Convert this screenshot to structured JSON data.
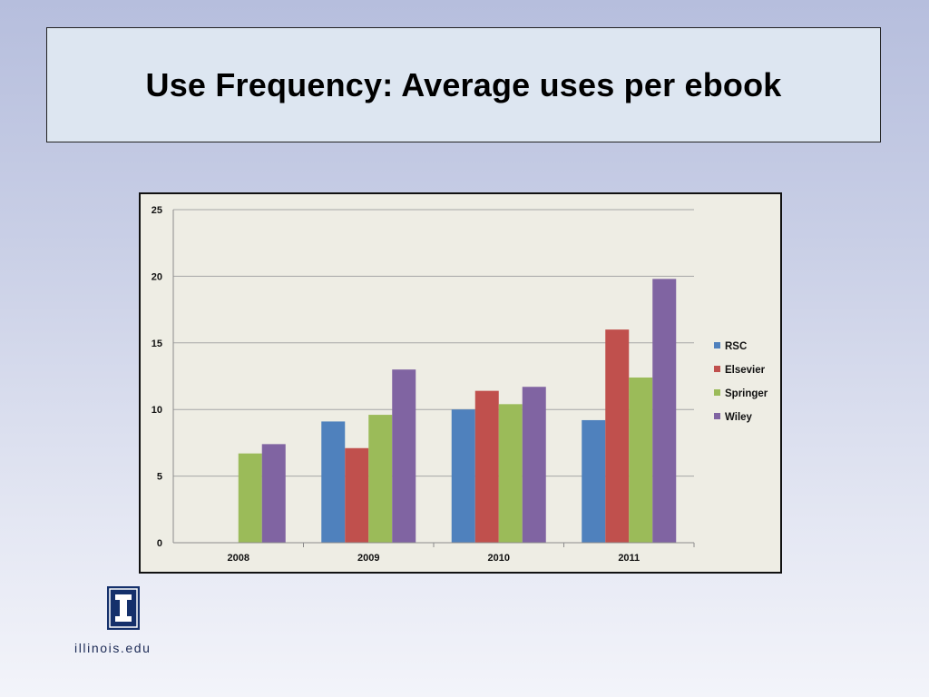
{
  "slide": {
    "title": "Use Frequency: Average uses per ebook"
  },
  "footer": {
    "logo_text": "illinois.edu",
    "logo_glyph": "I"
  },
  "chart_data": {
    "type": "bar",
    "categories": [
      "2008",
      "2009",
      "2010",
      "2011"
    ],
    "series": [
      {
        "name": "RSC",
        "color": "#4f81bd",
        "values": [
          null,
          9.1,
          10.0,
          9.2
        ]
      },
      {
        "name": "Elsevier",
        "color": "#c0504d",
        "values": [
          null,
          7.1,
          11.4,
          16.0
        ]
      },
      {
        "name": "Springer",
        "color": "#9bbb59",
        "values": [
          6.7,
          9.6,
          10.4,
          12.4
        ]
      },
      {
        "name": "Wiley",
        "color": "#8064a2",
        "values": [
          7.4,
          13.0,
          11.7,
          19.8
        ]
      }
    ],
    "ylim": [
      0,
      25
    ],
    "yticks": [
      "0",
      "5",
      "10",
      "15",
      "20",
      "25"
    ],
    "xlabel": "",
    "ylabel": "",
    "grid": true,
    "legend_position": "right"
  }
}
